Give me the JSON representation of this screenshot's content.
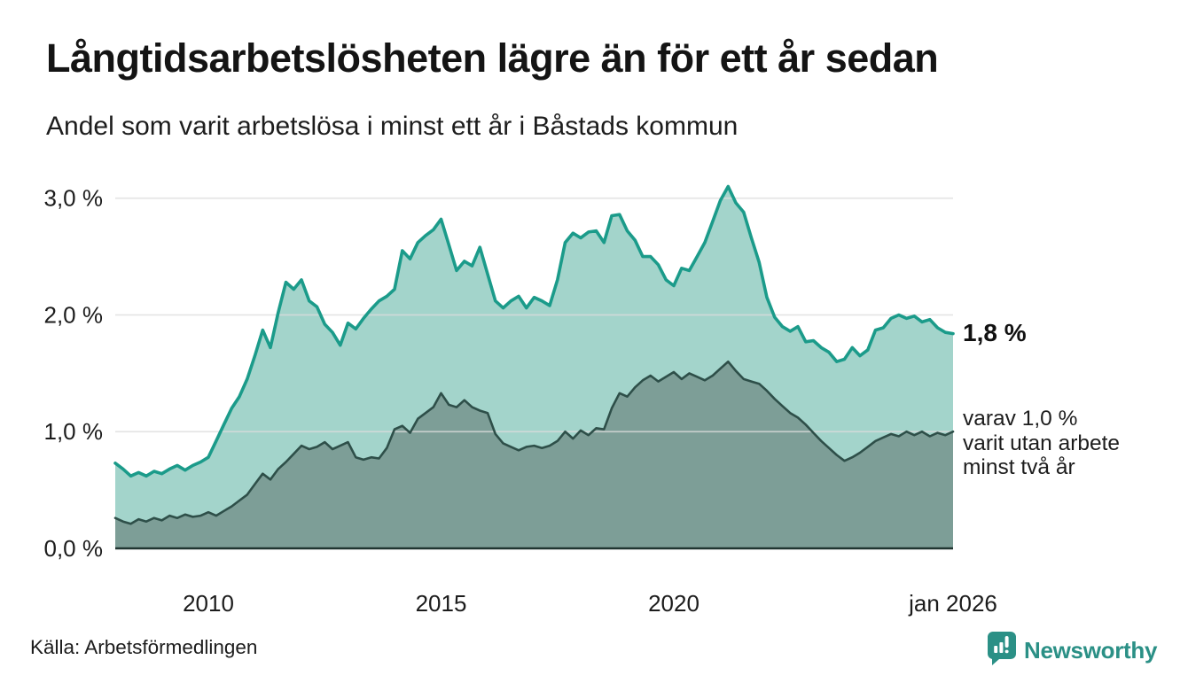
{
  "header": {
    "title": "Långtidsarbetslösheten lägre än för ett år sedan",
    "subtitle": "Andel som varit arbetslösa i minst ett år i Båstads kommun"
  },
  "chart_data": {
    "type": "area",
    "title": "Långtidsarbetslösheten lägre än för ett år sedan",
    "subtitle": "Andel som varit arbetslösa i minst ett år i Båstads kommun",
    "x_start": 2008.0,
    "x_step": 0.166667,
    "xlim": [
      2008,
      2026
    ],
    "ylim": [
      0,
      3.18
    ],
    "grid": true,
    "legend_position": "right-annotations",
    "colors": {
      "total_line": "#1b9b8a",
      "total_fill": "#a3d4cb",
      "two_year_line": "#2e4f49",
      "two_year_fill": "#7d9e97",
      "gridline": "#dddddd",
      "axis_line": "#203531"
    },
    "series": [
      {
        "name": "Andel arbetslösa minst ett år",
        "values": [
          0.73,
          0.68,
          0.62,
          0.65,
          0.62,
          0.66,
          0.64,
          0.68,
          0.71,
          0.67,
          0.71,
          0.74,
          0.78,
          0.92,
          1.06,
          1.2,
          1.3,
          1.45,
          1.65,
          1.87,
          1.72,
          2.02,
          2.28,
          2.22,
          2.3,
          2.12,
          2.07,
          1.92,
          1.85,
          1.74,
          1.93,
          1.88,
          1.97,
          2.05,
          2.12,
          2.16,
          2.22,
          2.55,
          2.48,
          2.62,
          2.68,
          2.73,
          2.82,
          2.6,
          2.38,
          2.46,
          2.42,
          2.58,
          2.35,
          2.12,
          2.06,
          2.12,
          2.16,
          2.06,
          2.15,
          2.12,
          2.08,
          2.3,
          2.62,
          2.7,
          2.66,
          2.71,
          2.72,
          2.62,
          2.85,
          2.86,
          2.72,
          2.64,
          2.5,
          2.5,
          2.43,
          2.3,
          2.25,
          2.4,
          2.38,
          2.5,
          2.62,
          2.8,
          2.98,
          3.1,
          2.96,
          2.88,
          2.66,
          2.45,
          2.15,
          1.98,
          1.9,
          1.86,
          1.9,
          1.77,
          1.78,
          1.72,
          1.68,
          1.6,
          1.62,
          1.72,
          1.65,
          1.7,
          1.87,
          1.89,
          1.97,
          2.0,
          1.97,
          1.99,
          1.94,
          1.96,
          1.89,
          1.85,
          1.84
        ]
      },
      {
        "name": "varav utan arbete minst två år",
        "values": [
          0.26,
          0.23,
          0.21,
          0.25,
          0.23,
          0.26,
          0.24,
          0.28,
          0.26,
          0.29,
          0.27,
          0.28,
          0.31,
          0.28,
          0.32,
          0.36,
          0.41,
          0.46,
          0.55,
          0.64,
          0.59,
          0.68,
          0.74,
          0.81,
          0.88,
          0.85,
          0.87,
          0.91,
          0.85,
          0.88,
          0.91,
          0.78,
          0.76,
          0.78,
          0.77,
          0.86,
          1.02,
          1.05,
          0.99,
          1.11,
          1.16,
          1.21,
          1.33,
          1.23,
          1.21,
          1.27,
          1.21,
          1.18,
          1.16,
          0.98,
          0.9,
          0.87,
          0.84,
          0.87,
          0.88,
          0.86,
          0.88,
          0.92,
          1.0,
          0.94,
          1.01,
          0.97,
          1.03,
          1.02,
          1.2,
          1.33,
          1.3,
          1.38,
          1.44,
          1.48,
          1.43,
          1.47,
          1.51,
          1.45,
          1.5,
          1.47,
          1.44,
          1.48,
          1.54,
          1.6,
          1.52,
          1.45,
          1.43,
          1.41,
          1.35,
          1.28,
          1.22,
          1.16,
          1.12,
          1.06,
          0.99,
          0.92,
          0.86,
          0.8,
          0.75,
          0.78,
          0.82,
          0.87,
          0.92,
          0.95,
          0.98,
          0.96,
          1.0,
          0.97,
          1.0,
          0.96,
          0.99,
          0.97,
          1.0
        ]
      }
    ],
    "yticks": [
      {
        "value": 0.0,
        "label": "0,0 %"
      },
      {
        "value": 1.0,
        "label": "1,0 %"
      },
      {
        "value": 2.0,
        "label": "2,0 %"
      },
      {
        "value": 3.0,
        "label": "3,0 %"
      }
    ],
    "xticks": [
      {
        "value": 2010,
        "label": "2010"
      },
      {
        "value": 2015,
        "label": "2015"
      },
      {
        "value": 2020,
        "label": "2020"
      },
      {
        "value": 2026,
        "label": "jan 2026"
      }
    ],
    "annotations": {
      "latest_label": "1,8 %",
      "latest_value": 1.84,
      "note_value": 1.0,
      "note_lines": [
        "varav 1,0 %",
        "varit utan arbete",
        "minst två år"
      ]
    }
  },
  "footer": {
    "source": "Källa: Arbetsförmedlingen",
    "brand": "Newsworthy",
    "brand_color": "#2b9086"
  }
}
